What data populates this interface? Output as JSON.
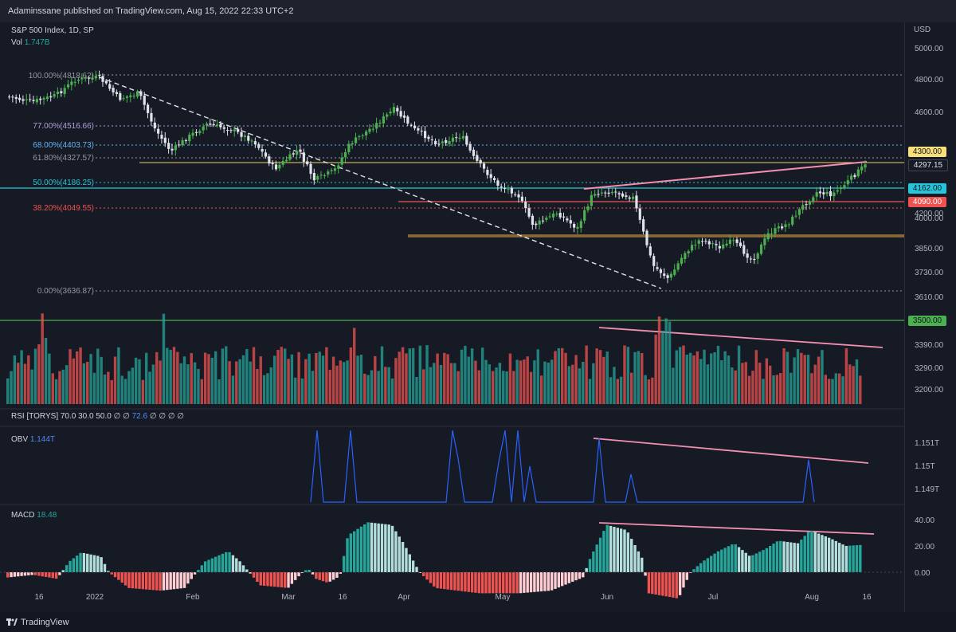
{
  "header": {
    "published": "Adaminssane published on TradingView.com, Aug 15, 2022 22:33 UTC+2"
  },
  "legend": {
    "symbol": "S&P 500 Index, 1D, SP",
    "vol_label": "Vol",
    "vol_value": "1.747B",
    "rsi_label": "RSI [TORYS]",
    "rsi_params": "70.0 30.0 50.0 ∅ ∅",
    "rsi_value": "72.6",
    "rsi_tail": "∅ ∅ ∅ ∅",
    "obv_label": "OBV",
    "obv_value": "1.144T",
    "macd_label": "MACD",
    "macd_value": "18.48"
  },
  "axis": {
    "currency": "USD",
    "price_ticks": [
      "5000.00",
      "4800.00",
      "4600.00",
      "4400.00",
      "4200.00",
      "4000.00",
      "3850.00",
      "3730.00",
      "3610.00",
      "3390.00",
      "3290.00",
      "3200.00"
    ],
    "obv_ticks": [
      "1.151T",
      "1.15T",
      "1.149T"
    ],
    "macd_ticks": [
      "40.00",
      "20.00",
      "0.00"
    ],
    "time_labels": [
      "16",
      "2022",
      "Feb",
      "Mar",
      "16",
      "Apr",
      "May",
      "Jun",
      "Jul",
      "Aug",
      "16"
    ]
  },
  "price_tags": {
    "t4300": "4300.00",
    "t4297": "4297.15",
    "t4162": "4162.00",
    "t4090": "4090.00",
    "t3500": "3500.00"
  },
  "fib_levels": [
    {
      "label": "100.00%(4818.62)",
      "color": "#9598a1"
    },
    {
      "label": "77.00%(4516.66)",
      "color": "#b39ddb"
    },
    {
      "label": "68.00%(4403.73)",
      "color": "#64b5f6"
    },
    {
      "label": "61.80%(4327.57)",
      "color": "#9598a1"
    },
    {
      "label": "50.00%(4186.25)",
      "color": "#26c6da"
    },
    {
      "label": "38.20%(4049.55)",
      "color": "#ef5350"
    },
    {
      "label": "0.00%(3636.87)",
      "color": "#9598a1"
    }
  ],
  "colors": {
    "up": "#4caf50",
    "down": "#e0e3eb",
    "vol_up": "#26a69a",
    "vol_down": "#ef5350",
    "trend_pink": "#f48fb1",
    "macd_up": "#26a69a",
    "macd_down": "#ef5350"
  },
  "footer": {
    "brand": "TradingView"
  }
}
